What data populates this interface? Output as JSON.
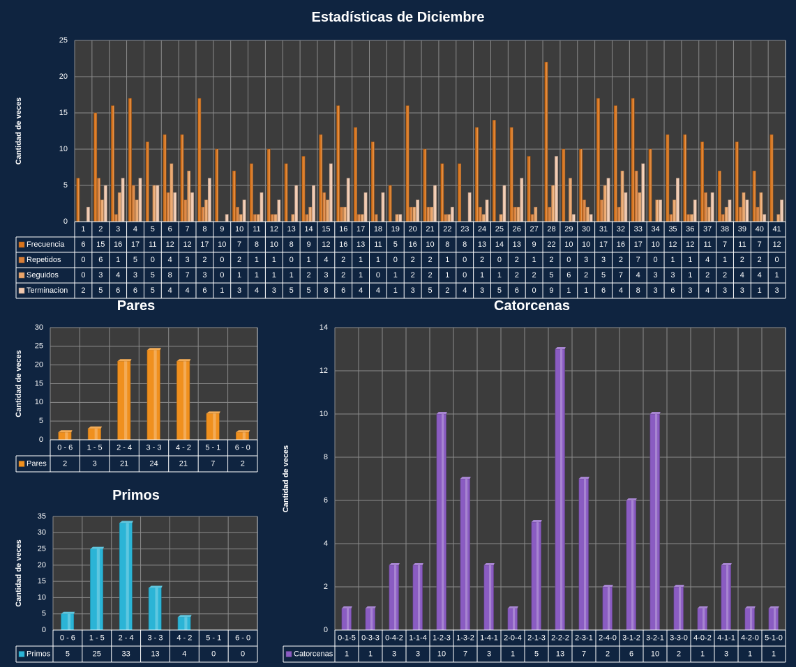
{
  "chart_data": [
    {
      "type": "bar",
      "title": "Estadísticas de Diciembre",
      "ylabel": "Cantidad de veces",
      "ylim": [
        0,
        25
      ],
      "yticks": [
        0,
        5,
        10,
        15,
        20,
        25
      ],
      "categories": [
        "1",
        "2",
        "3",
        "4",
        "5",
        "6",
        "7",
        "8",
        "9",
        "10",
        "11",
        "12",
        "13",
        "14",
        "15",
        "16",
        "17",
        "18",
        "19",
        "20",
        "21",
        "22",
        "23",
        "24",
        "25",
        "26",
        "27",
        "28",
        "29",
        "30",
        "31",
        "32",
        "33",
        "34",
        "35",
        "36",
        "37",
        "38",
        "39",
        "40",
        "41"
      ],
      "series": [
        {
          "name": "Frecuencia",
          "color": "#d8741c",
          "values": [
            6,
            15,
            16,
            17,
            11,
            12,
            12,
            17,
            10,
            7,
            8,
            10,
            8,
            9,
            12,
            16,
            13,
            11,
            5,
            16,
            10,
            8,
            8,
            13,
            14,
            13,
            9,
            22,
            10,
            10,
            17,
            16,
            17,
            10,
            12,
            12,
            11,
            7,
            11,
            7,
            12
          ]
        },
        {
          "name": "Repetidos",
          "color": "#d9803a",
          "values": [
            0,
            6,
            1,
            5,
            0,
            4,
            3,
            2,
            0,
            2,
            1,
            1,
            0,
            1,
            4,
            2,
            1,
            1,
            0,
            2,
            2,
            1,
            0,
            2,
            0,
            2,
            1,
            2,
            0,
            3,
            3,
            2,
            7,
            0,
            1,
            1,
            4,
            1,
            2,
            2,
            0
          ]
        },
        {
          "name": "Seguidos",
          "color": "#eaa56a",
          "values": [
            0,
            3,
            4,
            3,
            5,
            8,
            7,
            3,
            0,
            1,
            1,
            1,
            1,
            2,
            3,
            2,
            1,
            0,
            1,
            2,
            2,
            1,
            0,
            1,
            1,
            2,
            2,
            5,
            6,
            2,
            5,
            7,
            4,
            3,
            3,
            1,
            2,
            2,
            4,
            4,
            1
          ]
        },
        {
          "name": "Terminacion",
          "color": "#f0c8ae",
          "values": [
            2,
            5,
            6,
            6,
            5,
            4,
            4,
            6,
            1,
            3,
            4,
            3,
            5,
            5,
            8,
            6,
            4,
            4,
            1,
            3,
            5,
            2,
            4,
            3,
            5,
            6,
            0,
            9,
            1,
            1,
            6,
            4,
            8,
            3,
            6,
            3,
            4,
            3,
            3,
            1,
            3
          ]
        }
      ]
    },
    {
      "type": "bar",
      "title": "Pares",
      "ylabel": "Cantidad de veces",
      "ylim": [
        0,
        30
      ],
      "yticks": [
        0,
        5,
        10,
        15,
        20,
        25,
        30
      ],
      "categories": [
        "0 - 6",
        "1 - 5",
        "2 - 4",
        "3 - 3",
        "4 - 2",
        "5 - 1",
        "6 - 0"
      ],
      "series": [
        {
          "name": "Pares",
          "color": "#f0901e",
          "values": [
            2,
            3,
            21,
            24,
            21,
            7,
            2
          ]
        }
      ]
    },
    {
      "type": "bar",
      "title": "Primos",
      "ylabel": "Cantidad de veces",
      "ylim": [
        0,
        35
      ],
      "yticks": [
        0,
        5,
        10,
        15,
        20,
        25,
        30,
        35
      ],
      "categories": [
        "0 - 6",
        "1 - 5",
        "2 - 4",
        "3 - 3",
        "4 - 2",
        "5 - 1",
        "6 - 0"
      ],
      "series": [
        {
          "name": "Primos",
          "color": "#2bb4d6",
          "values": [
            5,
            25,
            33,
            13,
            4,
            0,
            0
          ]
        }
      ]
    },
    {
      "type": "bar",
      "title": "Catorcenas",
      "ylabel": "Cantidad de veces",
      "ylim": [
        0,
        14
      ],
      "yticks": [
        0,
        2,
        4,
        6,
        8,
        10,
        12,
        14
      ],
      "categories": [
        "0-1-5",
        "0-3-3",
        "0-4-2",
        "1-1-4",
        "1-2-3",
        "1-3-2",
        "1-4-1",
        "2-0-4",
        "2-1-3",
        "2-2-2",
        "2-3-1",
        "2-4-0",
        "3-1-2",
        "3-2-1",
        "3-3-0",
        "4-0-2",
        "4-1-1",
        "4-2-0",
        "5-1-0"
      ],
      "series": [
        {
          "name": "Catorcenas",
          "color": "#8a5cc2",
          "values": [
            1,
            1,
            3,
            3,
            10,
            7,
            3,
            1,
            5,
            13,
            7,
            2,
            6,
            10,
            2,
            1,
            3,
            1,
            1
          ]
        }
      ]
    }
  ],
  "colors": {
    "background": "#0f2440",
    "plot_background": "#3c3c3c",
    "grid": "#8c8c8c",
    "text": "#ffffff"
  }
}
